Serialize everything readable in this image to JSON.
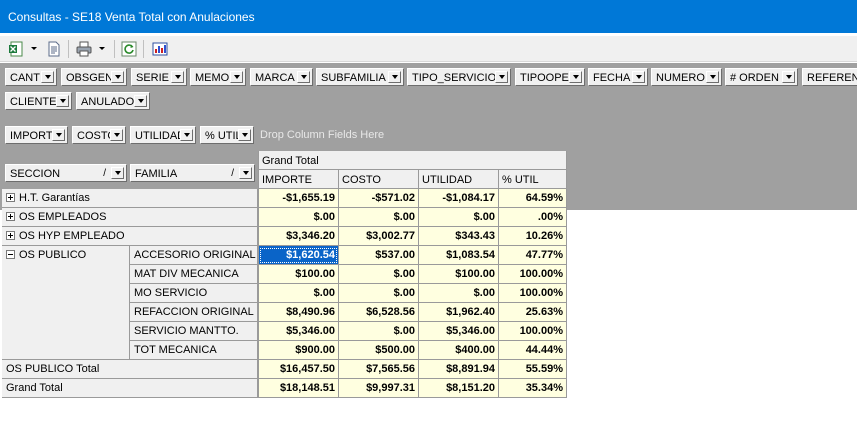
{
  "window": {
    "title": "Consultas - SE18 Venta Total con Anulaciones"
  },
  "toolbar": {
    "icons": [
      "excel-export-icon",
      "dropdown-arrow-icon",
      "document-icon",
      "print-icon",
      "dropdown-arrow-icon",
      "refresh-icon",
      "chart-icon"
    ]
  },
  "filter_fields": [
    "CANT",
    "OBSGEN",
    "SERIE",
    "MEMO",
    "MARCA",
    "SUBFAMILIA",
    "TIPO_SERVICIO",
    "TIPOOPE",
    "FECHA",
    "NUMERO",
    "# ORDEN",
    "REFERENCIA",
    "CLIENTE",
    "ANULADO"
  ],
  "data_fields": [
    "IMPORTE",
    "COSTO",
    "UTILIDAD",
    "% UTIL"
  ],
  "drop_hint": "Drop Column Fields Here",
  "row_fields": [
    "SECCION",
    "FAMILIA"
  ],
  "grand_total_header": "Grand Total",
  "columns": [
    "IMPORTE",
    "COSTO",
    "UTILIDAD",
    "% UTIL"
  ],
  "rows": [
    {
      "seccion": "H.T. Garantías",
      "expanded": false,
      "values": [
        "-$1,655.19",
        "-$571.02",
        "-$1,084.17",
        "64.59%"
      ]
    },
    {
      "seccion": "OS EMPLEADOS",
      "expanded": false,
      "values": [
        "$.00",
        "$.00",
        "$.00",
        ".00%"
      ]
    },
    {
      "seccion": "OS HYP EMPLEADO",
      "expanded": false,
      "values": [
        "$3,346.20",
        "$3,002.77",
        "$343.43",
        "10.26%"
      ]
    },
    {
      "seccion": "OS PUBLICO",
      "expanded": true,
      "children": [
        {
          "familia": "ACCESORIO ORIGINAL",
          "values": [
            "$1,620.54",
            "$537.00",
            "$1,083.54",
            "47.77%"
          ]
        },
        {
          "familia": "MAT DIV MECANICA",
          "values": [
            "$100.00",
            "$.00",
            "$100.00",
            "100.00%"
          ]
        },
        {
          "familia": "MO SERVICIO",
          "values": [
            "$.00",
            "$.00",
            "$.00",
            "100.00%"
          ]
        },
        {
          "familia": "REFACCION ORIGINAL",
          "values": [
            "$8,490.96",
            "$6,528.56",
            "$1,962.40",
            "25.63%"
          ]
        },
        {
          "familia": "SERVICIO MANTTO.",
          "values": [
            "$5,346.00",
            "$.00",
            "$5,346.00",
            "100.00%"
          ]
        },
        {
          "familia": "TOT MECANICA",
          "values": [
            "$900.00",
            "$500.00",
            "$400.00",
            "44.44%"
          ]
        }
      ]
    }
  ],
  "subtotal": {
    "label": "OS PUBLICO Total",
    "values": [
      "$16,457.50",
      "$7,565.56",
      "$8,891.94",
      "55.59%"
    ]
  },
  "grand_total": {
    "label": "Grand Total",
    "values": [
      "$18,148.51",
      "$9,997.31",
      "$8,151.20",
      "35.34%"
    ]
  },
  "selected_cell": {
    "row": "ACCESORIO ORIGINAL",
    "column": "IMPORTE"
  },
  "colors": {
    "title_bar": "#0078d7",
    "data_cell": "#ffffe0",
    "selection": "#0a64c8",
    "pivot_background": "#a0a0a0"
  }
}
